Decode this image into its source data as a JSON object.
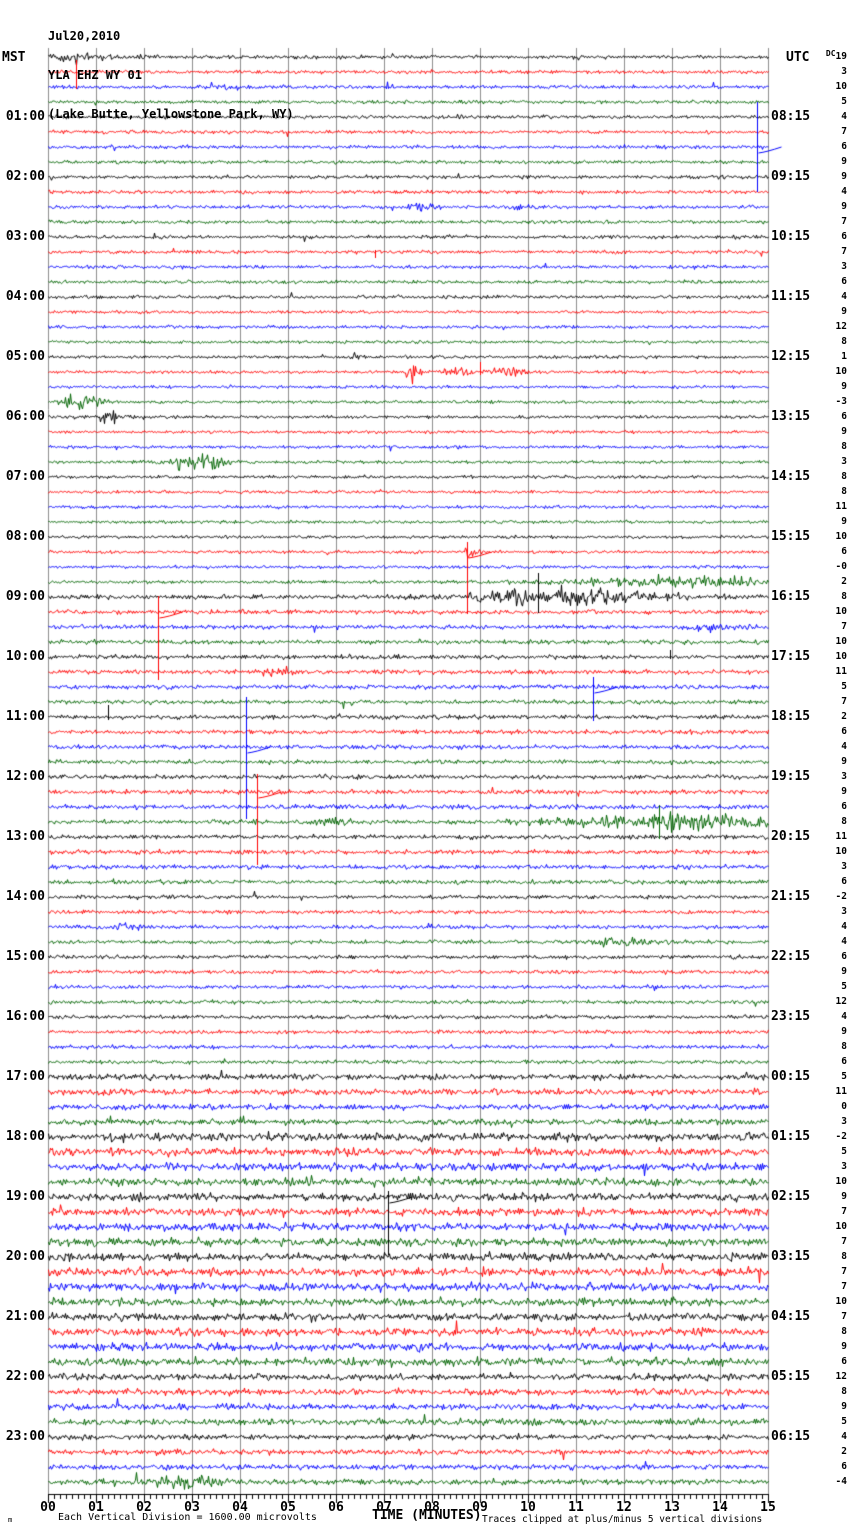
{
  "header": {
    "date": "Jul20,2010",
    "station": "YLA EHZ WY 01",
    "location": "(Lake Butte, Yellowstone Park, WY)"
  },
  "labels": {
    "left_tz": "MST",
    "right_tz": "UTC",
    "dc_prefix": "DC"
  },
  "footer": {
    "corner_mark": "m",
    "division_note": "Each Vertical Division = 1600.00 microvolts",
    "xaxis_title": "TIME (MINUTES)",
    "clip_note": "Traces clipped at plus/minus 5 vertical divisions"
  },
  "chart_data": {
    "type": "line",
    "subtype": "helicorder-seismogram",
    "title": "YLA EHZ WY 01 (Lake Butte, Yellowstone Park, WY) Jul20,2010",
    "minutes_per_line": 15,
    "traces_per_hour": 4,
    "hours": 24,
    "x_axis": {
      "label": "TIME (MINUTES)",
      "ticks": [
        "00",
        "01",
        "02",
        "03",
        "04",
        "05",
        "06",
        "07",
        "08",
        "09",
        "10",
        "11",
        "12",
        "13",
        "14",
        "15"
      ]
    },
    "trace_color_cycle": [
      "#000000",
      "#ff0000",
      "#0000ff",
      "#006400"
    ],
    "grid_color": "#8c8c8c",
    "mst_hour_labels": [
      "01:00",
      "02:00",
      "03:00",
      "04:00",
      "05:00",
      "06:00",
      "07:00",
      "08:00",
      "09:00",
      "10:00",
      "11:00",
      "12:00",
      "13:00",
      "14:00",
      "15:00",
      "16:00",
      "17:00",
      "18:00",
      "19:00",
      "20:00",
      "21:00",
      "22:00",
      "23:00"
    ],
    "utc_hour_labels": [
      "08:15",
      "09:15",
      "10:15",
      "11:15",
      "12:15",
      "13:15",
      "14:15",
      "15:15",
      "16:15",
      "17:15",
      "18:15",
      "19:15",
      "20:15",
      "21:15",
      "22:15",
      "23:15",
      "00:15",
      "01:15",
      "02:15",
      "03:15",
      "04:15",
      "05:15",
      "06:15"
    ],
    "dc_offsets": [
      "19",
      "3",
      "10",
      "5",
      "4",
      "7",
      "6",
      "9",
      "9",
      "4",
      "9",
      "7",
      "6",
      "7",
      "3",
      "6",
      "4",
      "9",
      "12",
      "8",
      "1",
      "10",
      "9",
      "-3",
      "6",
      "9",
      "8",
      "3",
      "8",
      "8",
      "11",
      "9",
      "10",
      "6",
      "-0",
      "2",
      "8",
      "10",
      "7",
      "10",
      "10",
      "11",
      "5",
      "7",
      "2",
      "6",
      "4",
      "9",
      "3",
      "9",
      "6",
      "8",
      "11",
      "10",
      "3",
      "6",
      "-2",
      "3",
      "4",
      "4",
      "6",
      "9",
      "5",
      "12",
      "4",
      "9",
      "8",
      "6",
      "5",
      "11",
      "0",
      "3",
      "-2",
      "5",
      "3",
      "10",
      "9",
      "7",
      "10",
      "7",
      "8",
      "7",
      "7",
      "10",
      "7",
      "8",
      "9",
      "6",
      "12",
      "8",
      "9",
      "5",
      "4",
      "2",
      "6",
      "-4"
    ],
    "noise_segments": [
      {
        "from": 0,
        "to": 16,
        "level": 1.0
      },
      {
        "from": 17,
        "to": 35,
        "level": 0.9
      },
      {
        "from": 36,
        "to": 55,
        "level": 1.25
      },
      {
        "from": 56,
        "to": 67,
        "level": 1.1
      },
      {
        "from": 68,
        "to": 71,
        "level": 1.7
      },
      {
        "from": 72,
        "to": 87,
        "level": 2.3
      },
      {
        "from": 88,
        "to": 91,
        "level": 1.9
      },
      {
        "from": 92,
        "to": 95,
        "level": 1.6
      }
    ],
    "events": [
      {
        "trace": 0,
        "type": "burst",
        "minute": 0.7,
        "width": 1.4,
        "amp": 2.5
      },
      {
        "trace": 1,
        "type": "spike",
        "minute": 0.58,
        "up": 12,
        "down": 17
      },
      {
        "trace": 2,
        "type": "burst",
        "minute": 4.0,
        "width": 0.5,
        "amp": 1.5
      },
      {
        "trace": 6,
        "type": "spike",
        "minute": 14.78,
        "up": 45,
        "down": 45
      },
      {
        "trace": 10,
        "type": "burst",
        "minute": 7.8,
        "width": 0.45,
        "amp": 3
      },
      {
        "trace": 10,
        "type": "burst",
        "minute": 9.9,
        "width": 0.3,
        "amp": 2
      },
      {
        "trace": 13,
        "type": "spike",
        "minute": 6.82,
        "up": 2,
        "down": 6
      },
      {
        "trace": 20,
        "type": "burst",
        "minute": 6.4,
        "width": 0.2,
        "amp": 3
      },
      {
        "trace": 21,
        "type": "burst",
        "minute": 7.62,
        "width": 0.18,
        "amp": 14
      },
      {
        "trace": 21,
        "type": "burst",
        "minute": 8.45,
        "width": 0.5,
        "amp": 4
      },
      {
        "trace": 21,
        "type": "spike",
        "minute": 9.0,
        "up": 10,
        "down": 3
      },
      {
        "trace": 21,
        "type": "burst",
        "minute": 9.6,
        "width": 0.5,
        "amp": 4
      },
      {
        "trace": 23,
        "type": "burst",
        "minute": 0.68,
        "width": 0.5,
        "amp": 7
      },
      {
        "trace": 24,
        "type": "burst",
        "minute": 1.3,
        "width": 0.6,
        "amp": 4
      },
      {
        "trace": 27,
        "type": "burst",
        "minute": 3.15,
        "width": 0.8,
        "amp": 9
      },
      {
        "trace": 33,
        "type": "spike",
        "minute": 8.72,
        "up": 10,
        "down": 62
      },
      {
        "trace": 33,
        "type": "burst",
        "minute": 8.75,
        "width": 0.25,
        "amp": 6
      },
      {
        "trace": 35,
        "type": "burst",
        "minute": 13.2,
        "width": 3.6,
        "amp": 4
      },
      {
        "trace": 36,
        "type": "burst",
        "minute": 10.8,
        "width": 2.6,
        "amp": 7
      },
      {
        "trace": 36,
        "type": "spike",
        "minute": 10.2,
        "up": 24,
        "down": 16
      },
      {
        "trace": 37,
        "type": "spike",
        "minute": 2.3,
        "up": 16,
        "down": 68
      },
      {
        "trace": 38,
        "type": "burst",
        "minute": 13.85,
        "width": 0.6,
        "amp": 4
      },
      {
        "trace": 40,
        "type": "spike",
        "minute": 12.96,
        "up": 7,
        "down": 2
      },
      {
        "trace": 41,
        "type": "burst",
        "minute": 4.75,
        "width": 0.5,
        "amp": 3
      },
      {
        "trace": 42,
        "type": "spike",
        "minute": 11.35,
        "up": 10,
        "down": 34
      },
      {
        "trace": 44,
        "type": "spike",
        "minute": 1.25,
        "up": 12,
        "down": 3
      },
      {
        "trace": 46,
        "type": "spike",
        "minute": 4.12,
        "up": 50,
        "down": 72
      },
      {
        "trace": 49,
        "type": "spike",
        "minute": 4.35,
        "up": 18,
        "down": 73
      },
      {
        "trace": 51,
        "type": "burst",
        "minute": 5.9,
        "width": 0.5,
        "amp": 3
      },
      {
        "trace": 51,
        "type": "burst",
        "minute": 13.3,
        "width": 3.4,
        "amp": 6
      },
      {
        "trace": 51,
        "type": "spike",
        "minute": 12.72,
        "up": 17,
        "down": 17
      },
      {
        "trace": 58,
        "type": "burst",
        "minute": 1.6,
        "width": 0.4,
        "amp": 3
      },
      {
        "trace": 59,
        "type": "burst",
        "minute": 12.0,
        "width": 1.0,
        "amp": 3
      },
      {
        "trace": 76,
        "type": "spike",
        "minute": 7.08,
        "up": 6,
        "down": 58
      },
      {
        "trace": 95,
        "type": "burst",
        "minute": 2.9,
        "width": 0.9,
        "amp": 6
      }
    ]
  }
}
